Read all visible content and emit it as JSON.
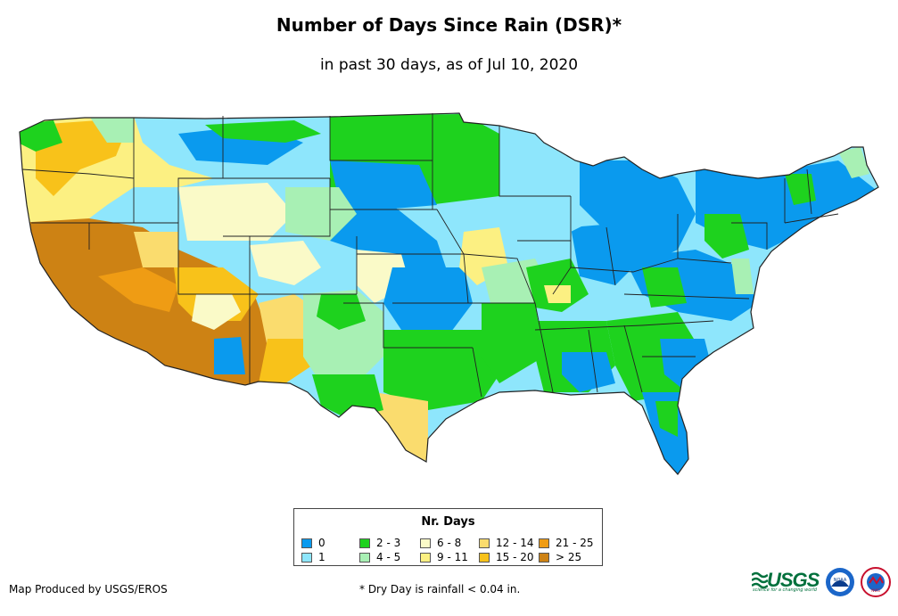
{
  "header": {
    "title": "Number of Days Since Rain (DSR)*",
    "subtitle": "in past 30 days, as of Jul 10, 2020"
  },
  "legend": {
    "title": "Nr. Days",
    "items": [
      {
        "label": "0",
        "color": "#0a9aee"
      },
      {
        "label": "1",
        "color": "#8ee6fc"
      },
      {
        "label": "2 - 3",
        "color": "#1ed21e"
      },
      {
        "label": "4 - 5",
        "color": "#a8f0b4"
      },
      {
        "label": "6 - 8",
        "color": "#fafac8"
      },
      {
        "label": "9 - 11",
        "color": "#fcf082"
      },
      {
        "label": "12 - 14",
        "color": "#fadc6e"
      },
      {
        "label": "15 - 20",
        "color": "#f8c21a"
      },
      {
        "label": "21 - 25",
        "color": "#ef9c14"
      },
      {
        "label": "> 25",
        "color": "#cd8214"
      }
    ]
  },
  "footer": {
    "credit": "Map Produced by USGS/EROS",
    "footnote": "* Dry Day is rainfall < 0.04 in."
  },
  "logos": {
    "usgs_text": "USGS",
    "usgs_tagline": "science for a changing world",
    "noaa_text": "NOAA",
    "nws_text": "NWS"
  }
}
